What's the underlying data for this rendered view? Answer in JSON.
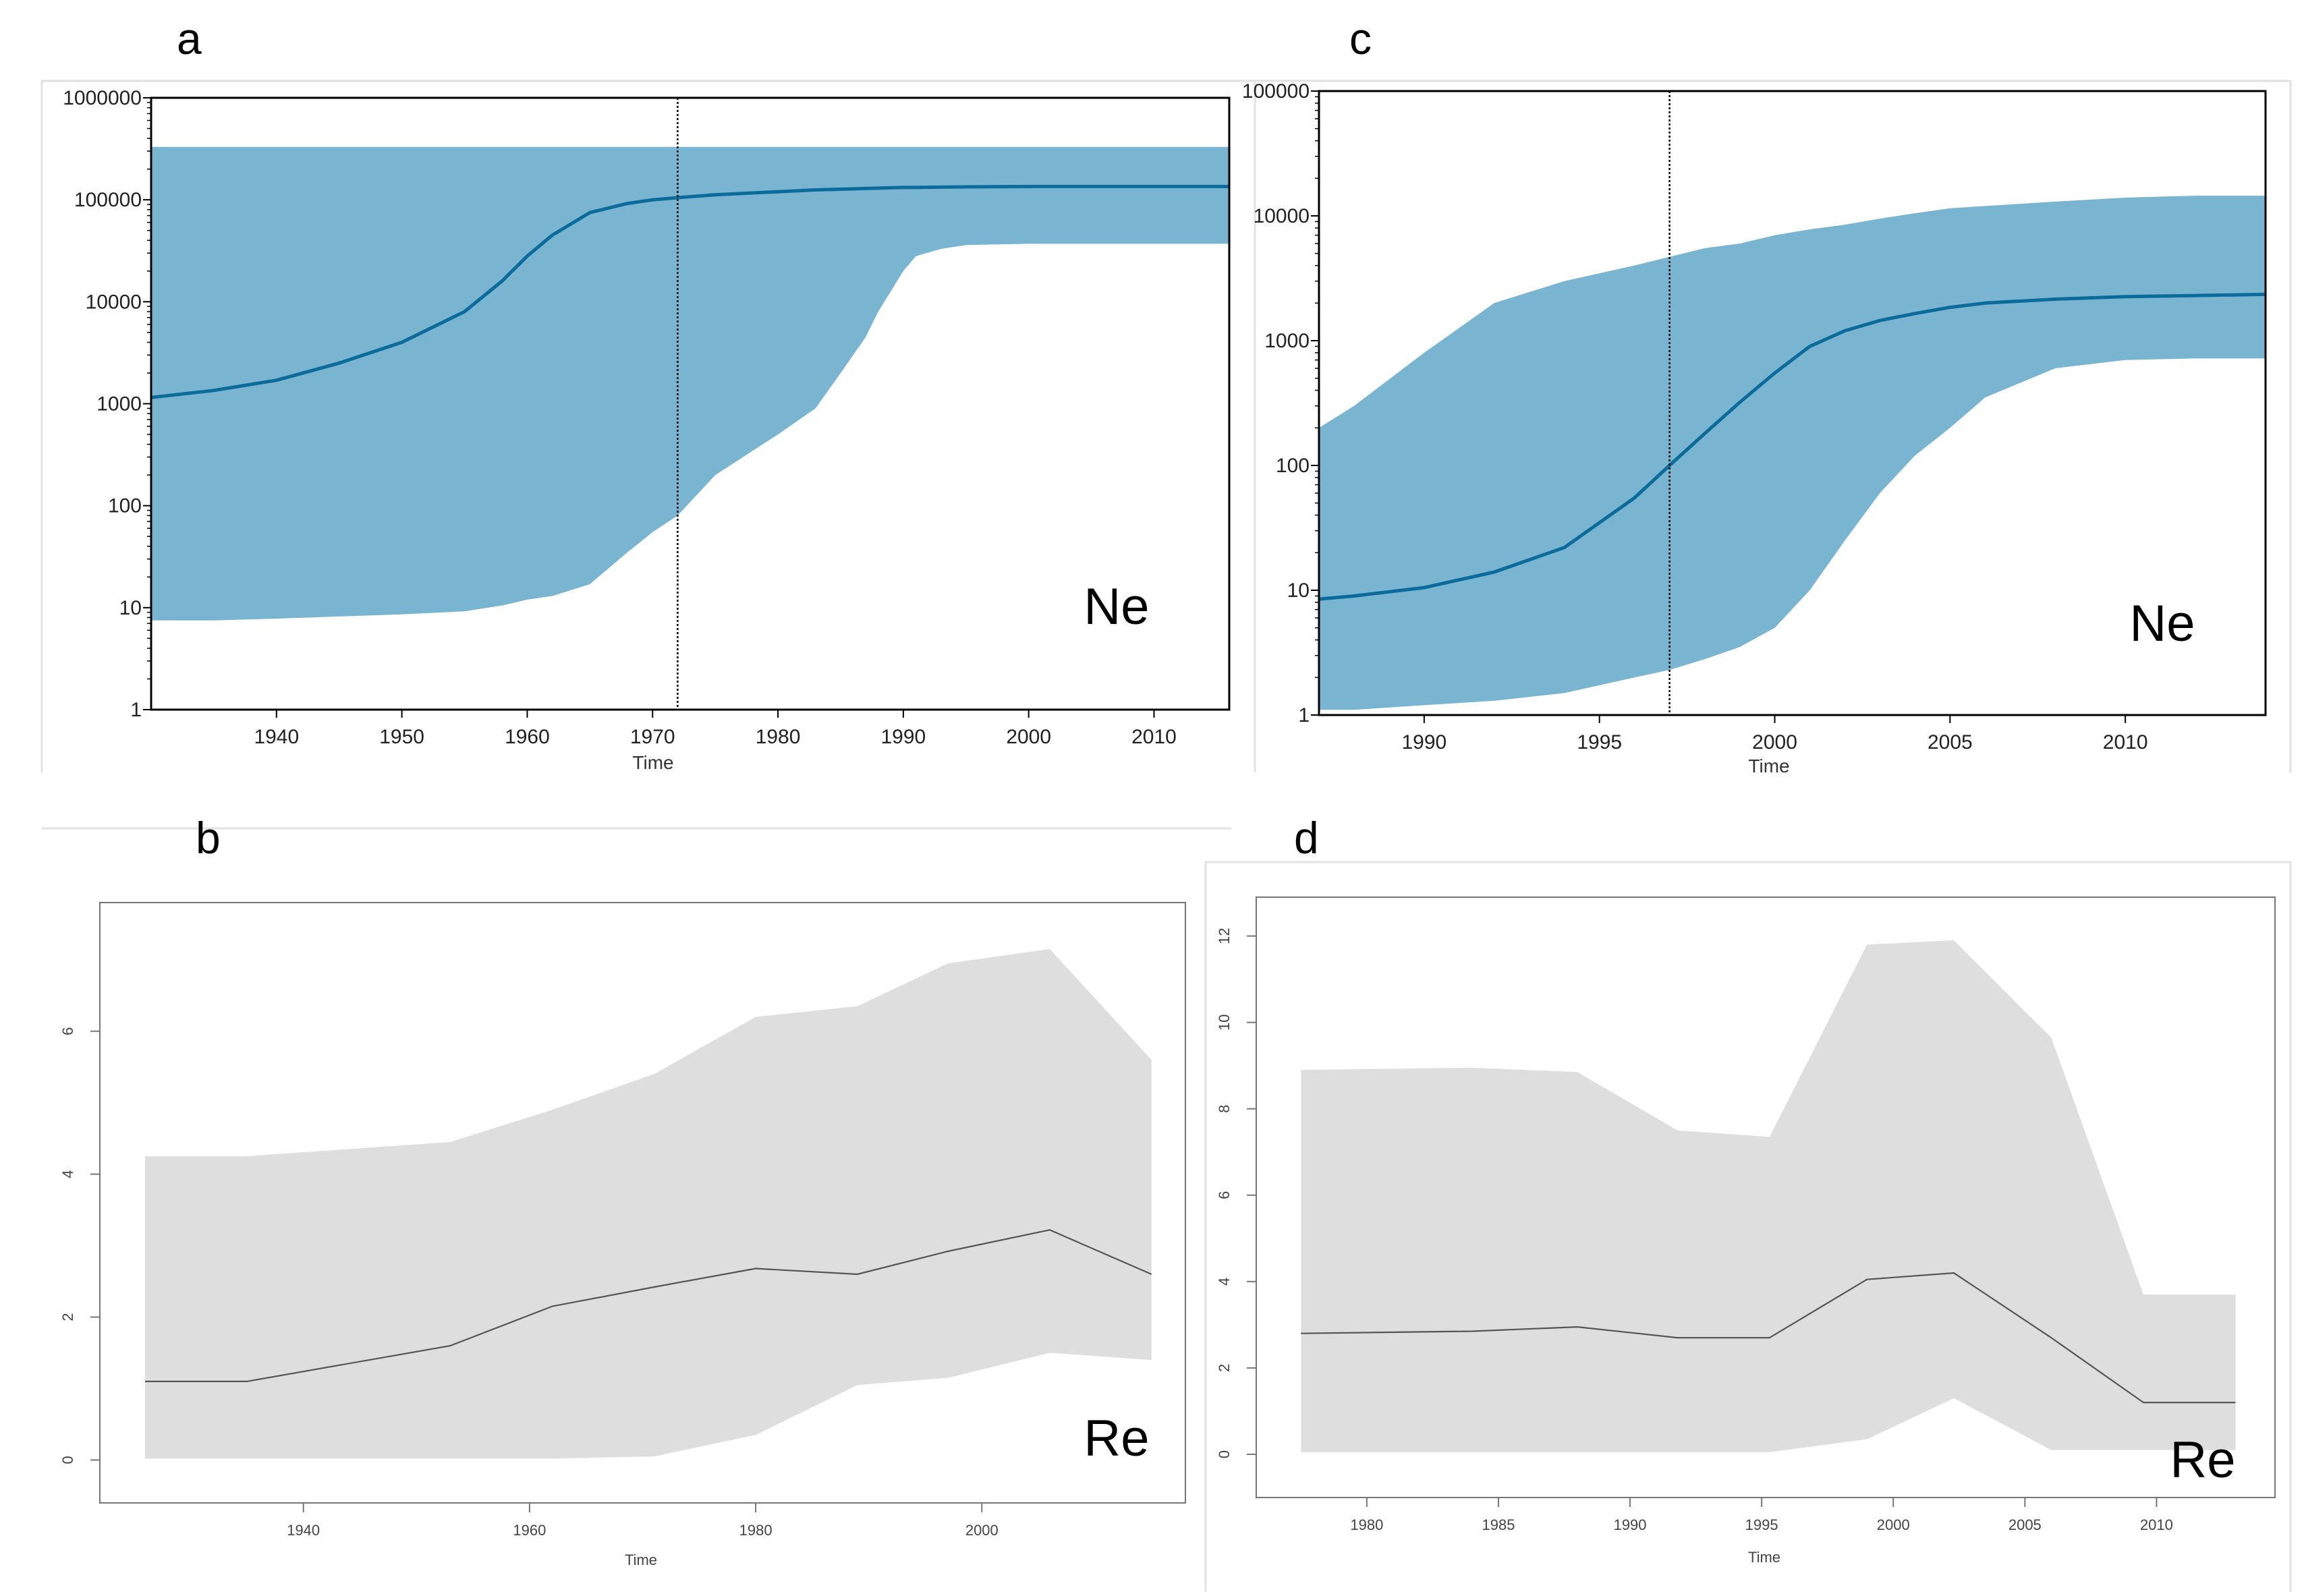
{
  "figure": {
    "panel_labels": {
      "a": "a",
      "b": "b",
      "c": "c",
      "d": "d"
    }
  },
  "colors": {
    "band_blue": "#79b4d1",
    "line_blue": "#0b6b9a",
    "band_gray": "#dedede",
    "line_gray": "#555555",
    "frame": "#000000",
    "frame_gray": "#777777"
  },
  "chart_data": [
    {
      "id": "a",
      "type": "area",
      "title": "",
      "xlabel": "Time",
      "ylabel": "",
      "annotation": "Ne",
      "yscale": "log",
      "xlim": [
        1930,
        2016
      ],
      "ylim": [
        1,
        1000000
      ],
      "xticks": [
        1940,
        1950,
        1960,
        1970,
        1980,
        1990,
        2000,
        2010
      ],
      "yticks": [
        1,
        10,
        100,
        1000,
        10000,
        100000,
        1000000
      ],
      "ytick_labels": [
        "1",
        "10",
        "100",
        "1000",
        "10000",
        "100000",
        "1000000"
      ],
      "vline": 1972,
      "x": [
        1930,
        1935,
        1940,
        1945,
        1950,
        1955,
        1958,
        1960,
        1962,
        1965,
        1968,
        1970,
        1972,
        1975,
        1980,
        1983,
        1985,
        1987,
        1988,
        1990,
        1991,
        1993,
        1995,
        2000,
        2005,
        2010,
        2016
      ],
      "lower": [
        7.5,
        7.5,
        7.8,
        8.2,
        8.6,
        9.2,
        10.5,
        12,
        13,
        17,
        35,
        55,
        80,
        200,
        500,
        900,
        2000,
        4500,
        8000,
        20000,
        28000,
        33000,
        36000,
        37000,
        37000,
        37000,
        37000
      ],
      "median": [
        1150,
        1350,
        1700,
        2500,
        4000,
        8000,
        16000,
        28000,
        45000,
        75000,
        92000,
        100000,
        105000,
        112000,
        120000,
        125000,
        127000,
        129000,
        130000,
        132000,
        132000,
        133000,
        134000,
        135000,
        135000,
        135000,
        135000
      ],
      "upper": [
        330000,
        330000,
        330000,
        330000,
        330000,
        330000,
        330000,
        330000,
        330000,
        330000,
        330000,
        330000,
        330000,
        330000,
        330000,
        330000,
        330000,
        330000,
        330000,
        330000,
        330000,
        330000,
        330000,
        330000,
        330000,
        330000,
        330000
      ]
    },
    {
      "id": "b",
      "type": "area",
      "title": "",
      "xlabel": "Time",
      "ylabel": "",
      "annotation": "Re",
      "yscale": "linear",
      "xlim": [
        1922,
        2018
      ],
      "ylim": [
        -0.6,
        7.8
      ],
      "xticks": [
        1940,
        1960,
        1980,
        2000
      ],
      "yticks": [
        0,
        2,
        4,
        6
      ],
      "x": [
        1926,
        1935,
        1953,
        1962,
        1971,
        1980,
        1989,
        1997,
        2006,
        2015
      ],
      "lower": [
        0.02,
        0.02,
        0.02,
        0.02,
        0.05,
        0.35,
        1.05,
        1.15,
        1.5,
        1.4
      ],
      "median": [
        1.1,
        1.1,
        1.6,
        2.15,
        2.42,
        2.68,
        2.6,
        2.92,
        3.22,
        2.6
      ],
      "upper": [
        4.25,
        4.25,
        4.45,
        4.9,
        5.4,
        6.2,
        6.35,
        6.95,
        7.15,
        5.6
      ]
    },
    {
      "id": "c",
      "type": "area",
      "title": "",
      "xlabel": "Time",
      "ylabel": "",
      "annotation": "Ne",
      "yscale": "log",
      "xlim": [
        1987,
        2014
      ],
      "ylim": [
        1,
        100000
      ],
      "xticks": [
        1990,
        1995,
        2000,
        2005,
        2010
      ],
      "yticks": [
        1,
        10,
        100,
        1000,
        10000,
        100000
      ],
      "ytick_labels": [
        "1",
        "10",
        "100",
        "1000",
        "10000",
        "100000"
      ],
      "vline": 1997,
      "x": [
        1987,
        1988,
        1990,
        1992,
        1994,
        1996,
        1997,
        1998,
        1999,
        2000,
        2001,
        2002,
        2003,
        2004,
        2005,
        2006,
        2008,
        2010,
        2012,
        2014
      ],
      "lower": [
        1.1,
        1.1,
        1.2,
        1.3,
        1.5,
        2,
        2.3,
        2.8,
        3.5,
        5,
        10,
        25,
        60,
        120,
        200,
        350,
        600,
        700,
        720,
        720
      ],
      "median": [
        8.5,
        9,
        10.5,
        14,
        22,
        55,
        100,
        180,
        320,
        550,
        900,
        1200,
        1450,
        1650,
        1850,
        2000,
        2150,
        2250,
        2300,
        2350
      ],
      "upper": [
        200,
        300,
        800,
        2000,
        3000,
        4000,
        4700,
        5500,
        6000,
        7000,
        7800,
        8500,
        9500,
        10500,
        11500,
        12000,
        13000,
        14000,
        14500,
        14500
      ]
    },
    {
      "id": "d",
      "type": "area",
      "title": "",
      "xlabel": "Time",
      "ylabel": "",
      "annotation": "Re",
      "yscale": "linear",
      "xlim": [
        1975.8,
        2014.5
      ],
      "ylim": [
        -1,
        12.9
      ],
      "xticks": [
        1980,
        1985,
        1990,
        1995,
        2000,
        2005,
        2010
      ],
      "yticks": [
        0,
        2,
        4,
        6,
        8,
        10,
        12
      ],
      "x": [
        1977.5,
        1984,
        1988,
        1991.8,
        1995.3,
        1999,
        2002.3,
        2006,
        2009.5,
        2013
      ],
      "lower": [
        0.05,
        0.05,
        0.05,
        0.05,
        0.05,
        0.35,
        1.3,
        0.1,
        0.1,
        0.1
      ],
      "median": [
        2.8,
        2.85,
        2.95,
        2.7,
        2.7,
        4.05,
        4.2,
        2.7,
        1.2,
        1.2
      ],
      "upper": [
        8.9,
        8.95,
        8.85,
        7.5,
        7.35,
        11.8,
        11.9,
        9.65,
        3.7,
        3.7
      ]
    }
  ]
}
